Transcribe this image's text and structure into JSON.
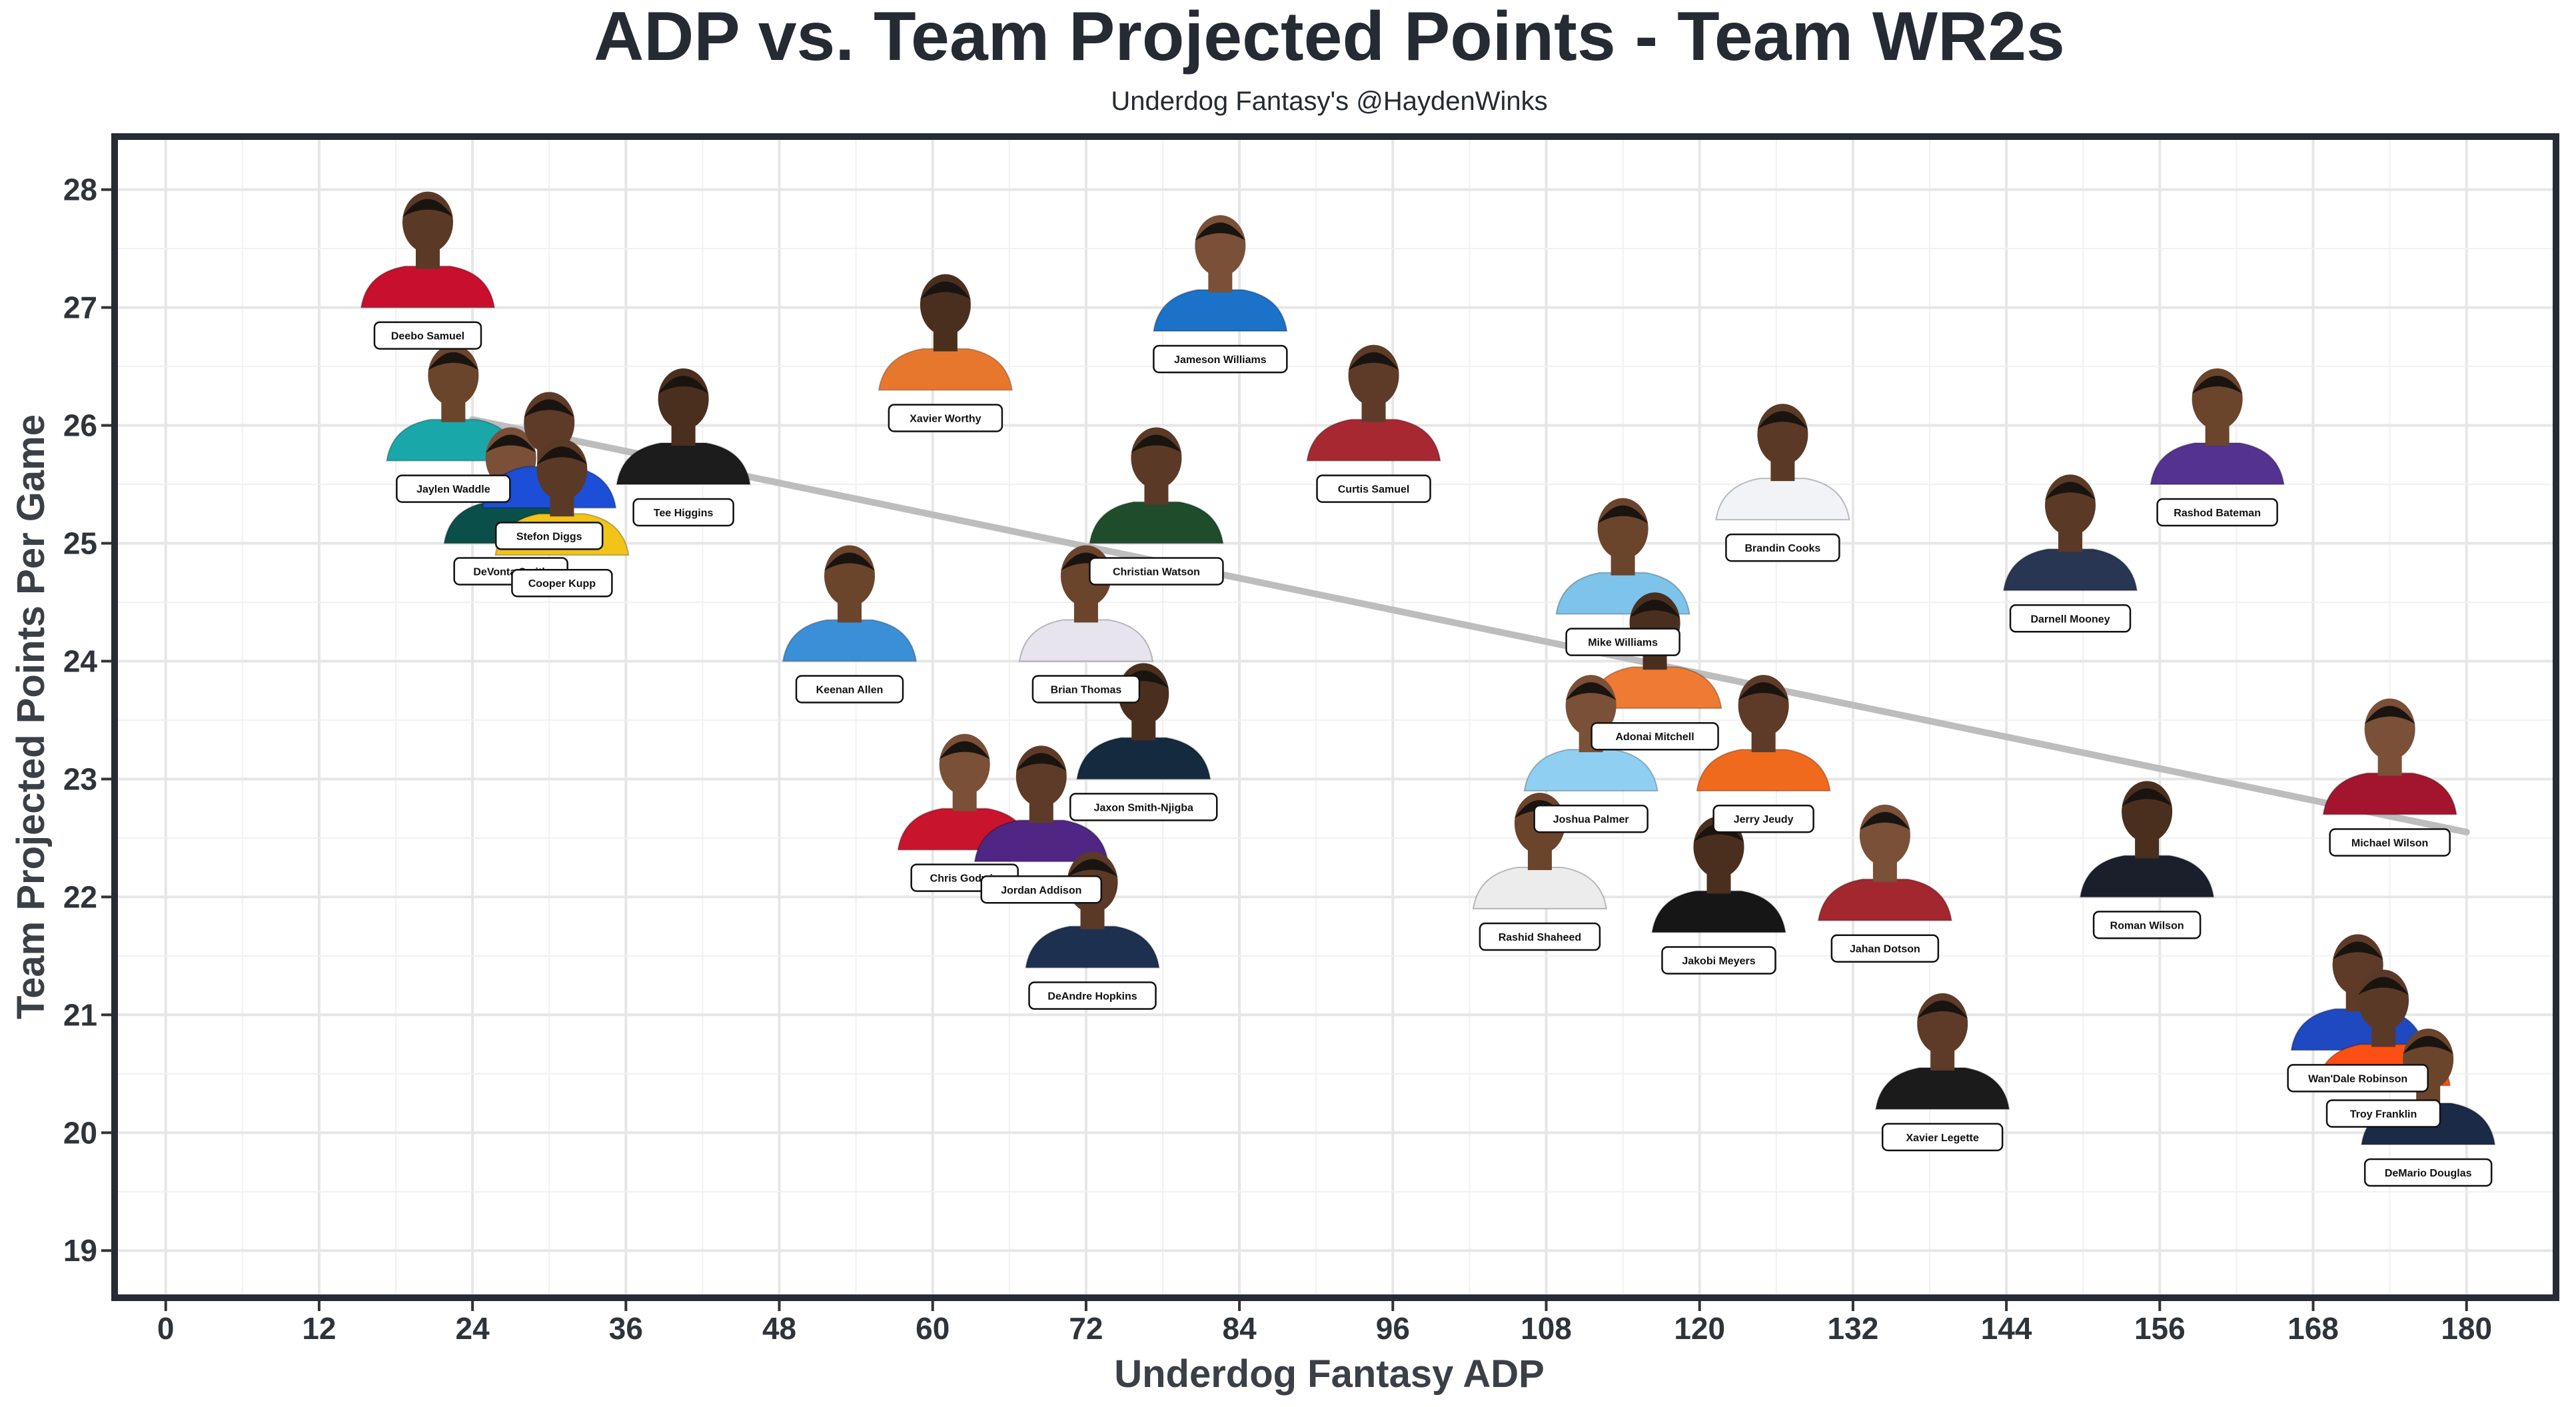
{
  "chart_data": {
    "type": "scatter",
    "title": "ADP vs. Team Projected Points - Team WR2s",
    "subtitle": "Underdog Fantasy's @HaydenWinks",
    "xlabel": "Underdog Fantasy ADP",
    "ylabel": "Team Projected Points Per Game",
    "xlim": [
      -4,
      187
    ],
    "ylim": [
      18.6,
      28.45
    ],
    "xticks": [
      0,
      12,
      24,
      36,
      48,
      60,
      72,
      84,
      96,
      108,
      120,
      132,
      144,
      156,
      168,
      180
    ],
    "yticks": [
      19,
      20,
      21,
      22,
      23,
      24,
      25,
      26,
      27,
      28
    ],
    "grid": true,
    "legend": "none",
    "trendline": {
      "x": [
        24,
        180
      ],
      "y": [
        26.05,
        22.55
      ]
    },
    "points": [
      {
        "name": "Deebo Samuel",
        "x": 20.5,
        "y": 27.0,
        "jersey": "#c8102e"
      },
      {
        "name": "Jaylen Waddle",
        "x": 22.5,
        "y": 25.7,
        "jersey": "#1aa7a9"
      },
      {
        "name": "Tee Higgins",
        "x": 40.5,
        "y": 25.5,
        "jersey": "#1c1c1c"
      },
      {
        "name": "DeVonta Smith",
        "x": 27.0,
        "y": 25.0,
        "jersey": "#0b4f4a"
      },
      {
        "name": "Stefon Diggs",
        "x": 30.0,
        "y": 25.3,
        "jersey": "#1d4ed8"
      },
      {
        "name": "Cooper Kupp",
        "x": 31.0,
        "y": 24.9,
        "jersey": "#f2c318"
      },
      {
        "name": "Keenan Allen",
        "x": 53.5,
        "y": 24.0,
        "jersey": "#3b8fd6"
      },
      {
        "name": "Xavier Worthy",
        "x": 61.0,
        "y": 26.3,
        "jersey": "#e8772e"
      },
      {
        "name": "Jameson Williams",
        "x": 82.5,
        "y": 26.8,
        "jersey": "#1b72c8"
      },
      {
        "name": "Curtis Samuel",
        "x": 94.5,
        "y": 25.7,
        "jersey": "#a82832"
      },
      {
        "name": "Christian Watson",
        "x": 77.5,
        "y": 25.0,
        "jersey": "#1f4d2c"
      },
      {
        "name": "Brian Thomas",
        "x": 72.0,
        "y": 24.0,
        "jersey": "#e8e4ee"
      },
      {
        "name": "Jaxon Smith-Njigba",
        "x": 76.5,
        "y": 23.0,
        "jersey": "#142a3e"
      },
      {
        "name": "Chris Godwin",
        "x": 62.5,
        "y": 22.4,
        "jersey": "#c8142c"
      },
      {
        "name": "Jordan Addison",
        "x": 68.5,
        "y": 22.3,
        "jersey": "#4f2683"
      },
      {
        "name": "DeAndre Hopkins",
        "x": 72.5,
        "y": 21.4,
        "jersey": "#1e3050"
      },
      {
        "name": "Mike Williams",
        "x": 114.0,
        "y": 24.4,
        "jersey": "#7ec3ea"
      },
      {
        "name": "Adonai Mitchell",
        "x": 116.5,
        "y": 23.6,
        "jersey": "#ef7a34"
      },
      {
        "name": "Joshua Palmer",
        "x": 111.5,
        "y": 22.9,
        "jersey": "#8fd0f2"
      },
      {
        "name": "Jerry Jeudy",
        "x": 125.0,
        "y": 22.9,
        "jersey": "#f06a1e"
      },
      {
        "name": "Brandin Cooks",
        "x": 126.5,
        "y": 25.2,
        "jersey": "#f1f3f6"
      },
      {
        "name": "Rashid Shaheed",
        "x": 107.5,
        "y": 21.9,
        "jersey": "#ececec"
      },
      {
        "name": "Jakobi Meyers",
        "x": 121.5,
        "y": 21.7,
        "jersey": "#161616"
      },
      {
        "name": "Jahan Dotson",
        "x": 134.5,
        "y": 21.8,
        "jersey": "#a3272f"
      },
      {
        "name": "Xavier Legette",
        "x": 139.0,
        "y": 20.2,
        "jersey": "#1b1b1b"
      },
      {
        "name": "Darnell Mooney",
        "x": 149.0,
        "y": 24.6,
        "jersey": "#283654"
      },
      {
        "name": "Rashod Bateman",
        "x": 160.5,
        "y": 25.5,
        "jersey": "#54328f"
      },
      {
        "name": "Roman Wilson",
        "x": 155.0,
        "y": 22.0,
        "jersey": "#1a1f2b"
      },
      {
        "name": "Michael Wilson",
        "x": 174.0,
        "y": 22.7,
        "jersey": "#a3152e"
      },
      {
        "name": "Wan'Dale Robinson",
        "x": 171.5,
        "y": 20.7,
        "jersey": "#1f49c0"
      },
      {
        "name": "Troy Franklin",
        "x": 173.5,
        "y": 20.4,
        "jersey": "#fb4f14"
      },
      {
        "name": "DeMario Douglas",
        "x": 177.0,
        "y": 19.9,
        "jersey": "#1b2a47"
      }
    ]
  }
}
